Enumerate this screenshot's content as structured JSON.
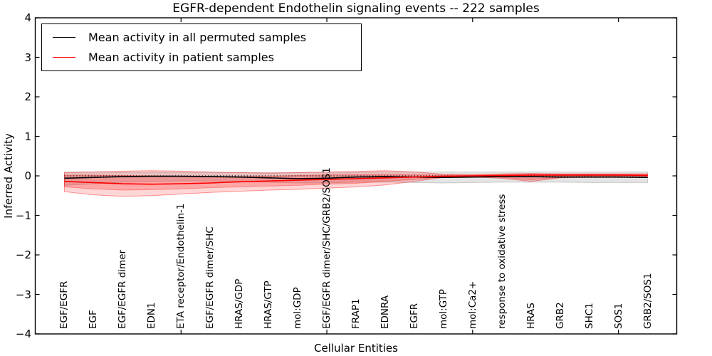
{
  "figure": {
    "background": "#ffffff"
  },
  "chart_data": {
    "type": "line",
    "title": "EGFR-dependent Endothelin signaling events -- 222 samples",
    "xlabel": "Cellular Entities",
    "ylabel": "Inferred Activity",
    "xlim": [
      0,
      22
    ],
    "ylim": [
      -4,
      4
    ],
    "grid": false,
    "legend_position": "upper left",
    "zero_reference_line": {
      "y": 0,
      "style": "dotted",
      "color": "#000000"
    },
    "yticks": [
      4,
      3,
      2,
      1,
      0,
      -1,
      -2,
      -3,
      -4
    ],
    "ytick_labels": [
      "4",
      "3",
      "2",
      "1",
      "0",
      "−1",
      "−2",
      "−3",
      "−4"
    ],
    "xtick_positions": [
      5,
      10,
      15,
      20
    ],
    "categories": [
      "EGF/EGFR",
      "EGF",
      "EGF/EGFR dimer",
      "EDN1",
      "ETA receptor/Endothelin-1",
      "EGF/EGFR dimer/SHC",
      "HRAS/GDP",
      "HRAS/GTP",
      "mol:GDP",
      "EGF/EGFR dimer/SHC/GRB2/SOS1",
      "FRAP1",
      "EDNRA",
      "EGFR",
      "mol:GTP",
      "mol:Ca2+",
      "response to oxidative stress",
      "HRAS",
      "GRB2",
      "SHC1",
      "SOS1",
      "GRB2/SOS1"
    ],
    "series": [
      {
        "key": "permuted-mean",
        "name": "Mean activity in all permuted samples",
        "color": "#000000",
        "values": [
          -0.06,
          -0.04,
          -0.02,
          -0.01,
          -0.01,
          -0.02,
          -0.03,
          -0.05,
          -0.07,
          -0.06,
          -0.03,
          -0.02,
          -0.03,
          -0.04,
          -0.03,
          -0.02,
          -0.02,
          -0.03,
          -0.03,
          -0.03,
          -0.04
        ]
      },
      {
        "key": "patient-mean",
        "name": "Mean activity in patient samples",
        "color": "#ff0000",
        "values": [
          -0.14,
          -0.17,
          -0.2,
          -0.21,
          -0.2,
          -0.18,
          -0.15,
          -0.13,
          -0.11,
          -0.09,
          -0.07,
          -0.05,
          -0.03,
          -0.01,
          0.0,
          0.01,
          0.02,
          0.02,
          0.02,
          0.02,
          0.01
        ]
      }
    ],
    "bands": [
      {
        "key": "permuted-std-band",
        "fill": "rgba(130,130,130,0.22)",
        "stroke": "rgba(130,130,130,0.35)",
        "upper": [
          0.1,
          0.1,
          0.09,
          0.09,
          0.09,
          0.08,
          0.08,
          0.08,
          0.08,
          0.09,
          0.09,
          0.1,
          0.1,
          0.1,
          0.1,
          0.1,
          0.1,
          0.1,
          0.1,
          0.1,
          0.1
        ],
        "lower": [
          -0.24,
          -0.2,
          -0.16,
          -0.14,
          -0.13,
          -0.13,
          -0.14,
          -0.16,
          -0.18,
          -0.18,
          -0.16,
          -0.16,
          -0.17,
          -0.18,
          -0.17,
          -0.16,
          -0.16,
          -0.16,
          -0.17,
          -0.17,
          -0.17
        ]
      },
      {
        "key": "patient-std-band-outer",
        "fill": "rgba(255,0,0,0.16)",
        "stroke": "rgba(255,0,0,0.40)",
        "upper": [
          0.08,
          0.1,
          0.12,
          0.13,
          0.12,
          0.1,
          0.08,
          0.07,
          0.08,
          0.1,
          0.11,
          0.13,
          0.1,
          0.04,
          0.03,
          0.05,
          0.06,
          0.05,
          0.05,
          0.05,
          0.05
        ],
        "lower": [
          -0.4,
          -0.48,
          -0.52,
          -0.5,
          -0.46,
          -0.42,
          -0.39,
          -0.36,
          -0.34,
          -0.31,
          -0.28,
          -0.23,
          -0.14,
          -0.04,
          -0.03,
          -0.06,
          -0.14,
          -0.05,
          -0.04,
          -0.04,
          -0.04
        ]
      },
      {
        "key": "patient-std-band-inner",
        "fill": "rgba(255,0,0,0.22)",
        "stroke": "rgba(255,0,0,0.30)",
        "upper": [
          0.02,
          0.02,
          0.01,
          0.0,
          -0.01,
          -0.02,
          -0.02,
          -0.01,
          0.01,
          0.03,
          0.03,
          0.04,
          0.03,
          0.02,
          0.02,
          0.03,
          0.04,
          0.04,
          0.04,
          0.04,
          0.04
        ],
        "lower": [
          -0.28,
          -0.33,
          -0.36,
          -0.35,
          -0.33,
          -0.3,
          -0.28,
          -0.26,
          -0.24,
          -0.21,
          -0.19,
          -0.14,
          -0.09,
          -0.03,
          -0.02,
          -0.04,
          -0.1,
          -0.04,
          -0.03,
          -0.03,
          -0.03
        ]
      }
    ]
  }
}
